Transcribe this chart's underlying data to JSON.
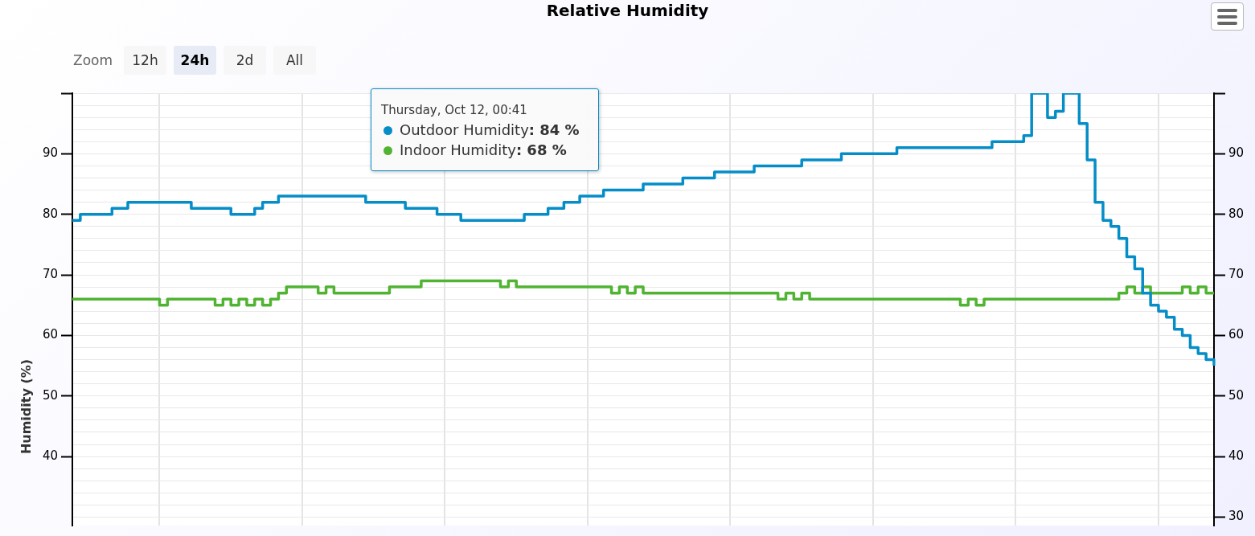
{
  "chart_data": {
    "type": "step",
    "title": "Relative Humidity",
    "ylabel": "Humidity (%)",
    "categories": [
      null,
      null,
      null,
      null,
      null,
      null,
      null,
      null,
      null,
      null,
      null,
      null,
      null,
      null,
      null,
      null,
      null,
      null,
      null,
      null,
      null,
      null,
      null,
      null,
      null,
      null,
      null,
      null,
      null,
      null,
      null,
      null,
      null,
      null,
      null,
      null,
      null,
      null,
      null,
      null,
      null,
      null,
      null,
      null,
      null,
      null,
      null,
      null,
      null,
      null,
      null,
      null,
      null,
      null,
      null,
      null,
      null,
      null,
      null,
      null,
      null,
      null,
      null,
      null,
      null,
      null,
      null,
      null,
      null,
      null,
      null,
      null,
      null,
      null,
      null,
      null,
      null,
      null,
      null,
      null,
      null,
      null,
      null,
      null,
      null,
      null,
      null,
      null,
      null,
      null,
      null,
      null,
      null,
      null,
      null,
      null,
      null,
      null,
      null,
      null,
      null,
      null,
      null,
      null,
      null,
      null,
      null,
      null,
      null,
      null,
      null,
      null,
      null,
      null,
      null,
      null,
      null,
      null,
      null,
      null,
      null,
      null,
      null,
      null,
      null,
      null,
      null,
      null,
      null,
      null,
      null,
      null,
      null,
      null,
      null,
      null,
      null,
      null,
      null,
      null,
      null,
      null,
      null,
      null,
      null
    ],
    "series": [
      {
        "name": "Outdoor Humidity",
        "color": "#058dc7",
        "values": [
          79,
          80,
          80,
          80,
          80,
          81,
          81,
          82,
          82,
          82,
          82,
          82,
          82,
          82,
          82,
          81,
          81,
          81,
          81,
          81,
          80,
          80,
          80,
          81,
          82,
          82,
          83,
          83,
          83,
          83,
          83,
          83,
          83,
          83,
          83,
          83,
          83,
          82,
          82,
          82,
          82,
          82,
          81,
          81,
          81,
          81,
          80,
          80,
          80,
          79,
          79,
          79,
          79,
          79,
          79,
          79,
          79,
          80,
          80,
          80,
          81,
          81,
          82,
          82,
          83,
          83,
          83,
          84,
          84,
          84,
          84,
          84,
          85,
          85,
          85,
          85,
          85,
          86,
          86,
          86,
          86,
          87,
          87,
          87,
          87,
          87,
          88,
          88,
          88,
          88,
          88,
          88,
          89,
          89,
          89,
          89,
          89,
          90,
          90,
          90,
          90,
          90,
          90,
          90,
          91,
          91,
          91,
          91,
          91,
          91,
          91,
          91,
          91,
          91,
          91,
          91,
          92,
          92,
          92,
          92,
          93,
          100,
          100,
          96,
          97,
          100,
          100,
          95,
          89,
          82,
          79,
          78,
          76,
          73,
          71,
          67,
          65,
          64,
          63,
          61,
          60,
          58,
          57,
          56,
          55
        ]
      },
      {
        "name": "Indoor Humidity",
        "color": "#50b432",
        "values": [
          66,
          66,
          66,
          66,
          66,
          66,
          66,
          66,
          66,
          66,
          66,
          65,
          66,
          66,
          66,
          66,
          66,
          66,
          65,
          66,
          65,
          66,
          65,
          66,
          65,
          66,
          67,
          68,
          68,
          68,
          68,
          67,
          68,
          67,
          67,
          67,
          67,
          67,
          67,
          67,
          68,
          68,
          68,
          68,
          69,
          69,
          69,
          69,
          69,
          69,
          69,
          69,
          69,
          69,
          68,
          69,
          68,
          68,
          68,
          68,
          68,
          68,
          68,
          68,
          68,
          68,
          68,
          68,
          67,
          68,
          67,
          68,
          67,
          67,
          67,
          67,
          67,
          67,
          67,
          67,
          67,
          67,
          67,
          67,
          67,
          67,
          67,
          67,
          67,
          66,
          67,
          66,
          67,
          66,
          66,
          66,
          66,
          66,
          66,
          66,
          66,
          66,
          66,
          66,
          66,
          66,
          66,
          66,
          66,
          66,
          66,
          66,
          65,
          66,
          65,
          66,
          66,
          66,
          66,
          66,
          66,
          66,
          66,
          66,
          66,
          66,
          66,
          66,
          66,
          66,
          66,
          66,
          67,
          68,
          67,
          68,
          67,
          67,
          67,
          67,
          68,
          67,
          68,
          67,
          67
        ]
      }
    ],
    "ylim": [
      28.6,
      100
    ],
    "yticks": [
      {
        "value": 30,
        "label": null
      },
      {
        "value": 32,
        "label": null
      },
      {
        "value": 34,
        "label": null
      },
      {
        "value": 36,
        "label": null
      },
      {
        "value": 38,
        "label": null
      },
      40,
      {
        "value": 42,
        "label": null
      },
      {
        "value": 44,
        "label": null
      },
      {
        "value": 46,
        "label": null
      },
      {
        "value": 48,
        "label": null
      },
      50,
      {
        "value": 52,
        "label": null
      },
      {
        "value": 54,
        "label": null
      },
      {
        "value": 56,
        "label": null
      },
      {
        "value": 58,
        "label": null
      },
      60,
      {
        "value": 62,
        "label": null
      },
      {
        "value": 64,
        "label": null
      },
      {
        "value": 66,
        "label": null
      },
      {
        "value": 68,
        "label": null
      },
      70,
      {
        "value": 72,
        "label": null
      },
      {
        "value": 74,
        "label": null
      },
      {
        "value": 76,
        "label": null
      },
      {
        "value": 78,
        "label": null
      },
      80,
      {
        "value": 82,
        "label": null
      },
      {
        "value": 84,
        "label": null
      },
      {
        "value": 86,
        "label": null
      },
      {
        "value": 88,
        "label": null
      },
      90,
      {
        "value": 92,
        "label": null
      },
      {
        "value": 94,
        "label": null
      },
      {
        "value": 96,
        "label": null
      },
      {
        "value": 98,
        "label": null
      },
      {
        "value": 100,
        "label": null
      }
    ],
    "y2lim": [
      28.6,
      100
    ],
    "y2ticks": [
      30,
      40,
      50,
      60,
      70,
      80,
      90,
      {
        "value": 100,
        "label": null
      }
    ],
    "grid": true,
    "legend": "top left",
    "annotations": [
      "Zoom",
      "12h",
      "24h",
      "2d",
      "All",
      "Thursday, Oct 12, 00:41",
      ": 84 %",
      ": 68 %"
    ]
  }
}
